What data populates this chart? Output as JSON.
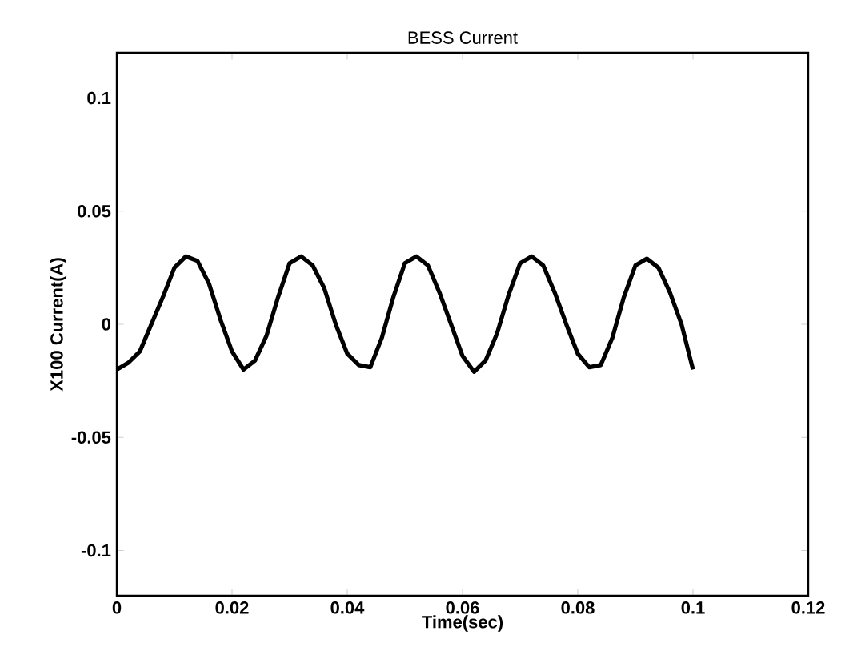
{
  "chart_data": {
    "type": "line",
    "title": "BESS Current",
    "xlabel": "Time(sec)",
    "ylabel": "X100 Current(A)",
    "xlim": [
      0,
      0.12
    ],
    "ylim": [
      -0.12,
      0.12
    ],
    "xticks": [
      0,
      0.02,
      0.04,
      0.06,
      0.08,
      0.1,
      0.12
    ],
    "yticks": [
      -0.1,
      -0.05,
      0,
      0.05,
      0.1
    ],
    "grid": false,
    "marker": "none",
    "line_style": "solid",
    "series": [
      {
        "color": "#000000",
        "x": [
          0,
          0.002,
          0.004,
          0.006,
          0.008,
          0.01,
          0.012,
          0.014,
          0.016,
          0.018,
          0.02,
          0.022,
          0.024,
          0.026,
          0.028,
          0.03,
          0.032,
          0.034,
          0.036,
          0.038,
          0.04,
          0.042,
          0.044,
          0.046,
          0.048,
          0.05,
          0.052,
          0.054,
          0.056,
          0.058,
          0.06,
          0.062,
          0.064,
          0.066,
          0.068,
          0.07,
          0.072,
          0.074,
          0.076,
          0.078,
          0.08,
          0.082,
          0.084,
          0.086,
          0.088,
          0.09,
          0.092,
          0.094,
          0.096,
          0.098,
          0.1
        ],
        "values": [
          -0.02,
          -0.017,
          -0.012,
          0.0,
          0.012,
          0.025,
          0.03,
          0.028,
          0.018,
          0.002,
          -0.012,
          -0.02,
          -0.016,
          -0.005,
          0.012,
          0.027,
          0.03,
          0.026,
          0.016,
          0.0,
          -0.013,
          -0.018,
          -0.019,
          -0.006,
          0.012,
          0.027,
          0.03,
          0.026,
          0.014,
          0.0,
          -0.014,
          -0.021,
          -0.016,
          -0.004,
          0.013,
          0.027,
          0.03,
          0.026,
          0.014,
          0.0,
          -0.013,
          -0.019,
          -0.018,
          -0.006,
          0.012,
          0.026,
          0.029,
          0.025,
          0.014,
          0.0,
          -0.02
        ]
      }
    ]
  }
}
